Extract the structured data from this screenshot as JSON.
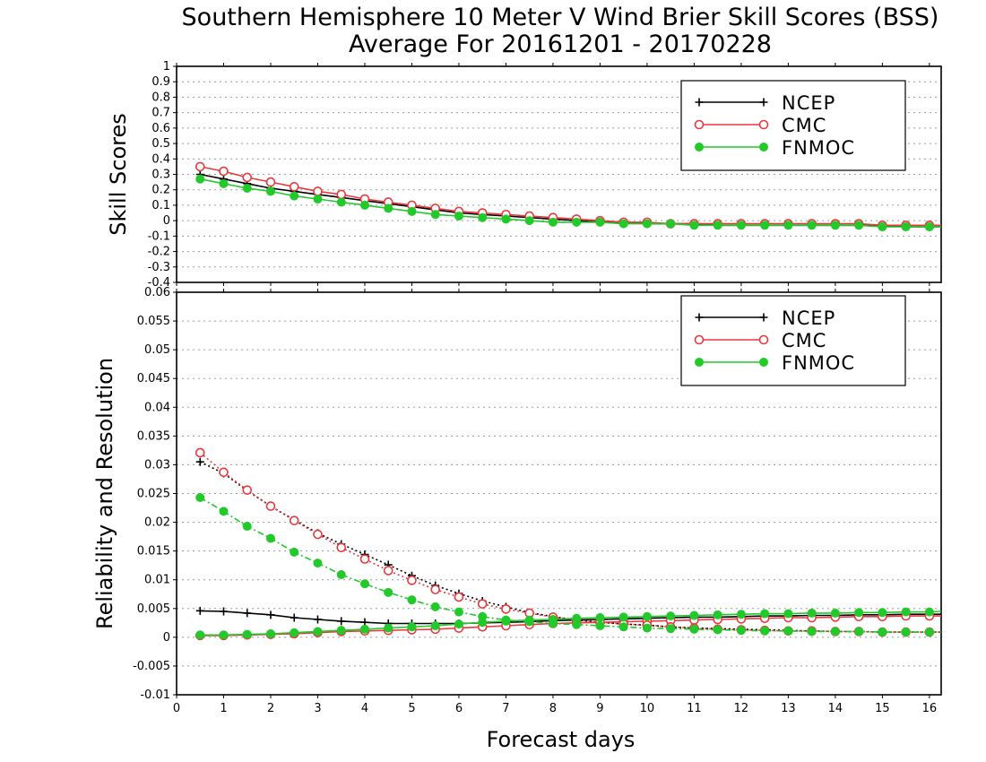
{
  "title_line1": "Southern Hemisphere 10 Meter V Wind Brier Skill Scores (BSS)",
  "title_line2": "Average For 20161201 - 20170228",
  "colors": {
    "NCEP": "#000000",
    "CMC": "#e8393f",
    "FNMOC": "#22c92a",
    "grid": "#9a9a9a"
  },
  "chart_data": [
    {
      "type": "line",
      "ylabel": "Skill Scores",
      "xlabel": "",
      "xlim": [
        0,
        16.25
      ],
      "ylim": [
        -0.4,
        1.0
      ],
      "x_ticks": [
        0,
        1,
        2,
        3,
        4,
        5,
        6,
        7,
        8,
        9,
        10,
        11,
        12,
        13,
        14,
        15,
        16
      ],
      "y_ticks": [
        1,
        0.9,
        0.8,
        0.7,
        0.6,
        0.5,
        0.4,
        0.3,
        0.2,
        0.1,
        0,
        -0.1,
        -0.2,
        -0.3,
        -0.4
      ],
      "y_tick_labels": [
        "1",
        "0.9",
        "0.8",
        "0.7",
        "0.6",
        "0.5",
        "0.4",
        "0.3",
        "0.2",
        "0.1",
        "0",
        "-0.1",
        "-0.2",
        "-0.3",
        "-0.4"
      ],
      "grid": true,
      "legend_position": "top-right",
      "x": [
        0.5,
        1,
        1.5,
        2,
        2.5,
        3,
        3.5,
        4,
        4.5,
        5,
        5.5,
        6,
        6.5,
        7,
        7.5,
        8,
        8.5,
        9,
        9.5,
        10,
        10.5,
        11,
        11.5,
        12,
        12.5,
        13,
        13.5,
        14,
        14.5,
        15,
        15.5,
        16,
        16.25
      ],
      "series": [
        {
          "name": "NCEP",
          "style": "solid",
          "marker": "plus",
          "values": [
            0.3,
            0.27,
            0.24,
            0.21,
            0.19,
            0.17,
            0.15,
            0.13,
            0.11,
            0.09,
            0.07,
            0.05,
            0.04,
            0.03,
            0.02,
            0.01,
            0.0,
            -0.01,
            -0.01,
            -0.02,
            -0.02,
            -0.02,
            -0.03,
            -0.03,
            -0.03,
            -0.03,
            -0.03,
            -0.03,
            -0.03,
            -0.03,
            -0.04,
            -0.04,
            -0.04
          ]
        },
        {
          "name": "CMC",
          "style": "solid",
          "marker": "open-circle",
          "values": [
            0.35,
            0.32,
            0.28,
            0.25,
            0.22,
            0.19,
            0.17,
            0.14,
            0.12,
            0.1,
            0.08,
            0.06,
            0.05,
            0.04,
            0.03,
            0.02,
            0.01,
            0.0,
            -0.01,
            -0.01,
            -0.02,
            -0.02,
            -0.02,
            -0.02,
            -0.02,
            -0.02,
            -0.02,
            -0.02,
            -0.02,
            -0.03,
            -0.03,
            -0.03,
            -0.03
          ]
        },
        {
          "name": "FNMOC",
          "style": "solid",
          "marker": "filled-circle",
          "values": [
            0.27,
            0.24,
            0.21,
            0.19,
            0.16,
            0.14,
            0.12,
            0.1,
            0.08,
            0.06,
            0.04,
            0.03,
            0.02,
            0.01,
            0.0,
            -0.01,
            -0.01,
            -0.01,
            -0.02,
            -0.02,
            -0.02,
            -0.03,
            -0.03,
            -0.03,
            -0.03,
            -0.03,
            -0.03,
            -0.03,
            -0.03,
            -0.04,
            -0.04,
            -0.04,
            -0.04
          ]
        }
      ],
      "legend": [
        {
          "name": "NCEP",
          "marker": "plus"
        },
        {
          "name": "CMC",
          "marker": "open-circle"
        },
        {
          "name": "FNMOC",
          "marker": "filled-circle"
        }
      ]
    },
    {
      "type": "line",
      "ylabel": "Reliability and Resolution",
      "xlabel": "Forecast days",
      "xlim": [
        0,
        16.25
      ],
      "ylim": [
        -0.01,
        0.06
      ],
      "x_ticks": [
        0,
        1,
        2,
        3,
        4,
        5,
        6,
        7,
        8,
        9,
        10,
        11,
        12,
        13,
        14,
        15,
        16
      ],
      "y_ticks": [
        0.06,
        0.055,
        0.05,
        0.045,
        0.04,
        0.035,
        0.03,
        0.025,
        0.02,
        0.015,
        0.01,
        0.005,
        0,
        -0.005,
        -0.01
      ],
      "y_tick_labels": [
        "0.06",
        "0.055",
        "0.05",
        "0.045",
        "0.04",
        "0.035",
        "0.03",
        "0.025",
        "0.02",
        "0.015",
        "0.01",
        "0.005",
        "0",
        "-0.005",
        "-0.01"
      ],
      "grid": true,
      "legend_position": "top-right",
      "x": [
        0.5,
        1,
        1.5,
        2,
        2.5,
        3,
        3.5,
        4,
        4.5,
        5,
        5.5,
        6,
        6.5,
        7,
        7.5,
        8,
        8.5,
        9,
        9.5,
        10,
        10.5,
        11,
        11.5,
        12,
        12.5,
        13,
        13.5,
        14,
        14.5,
        15,
        15.5,
        16,
        16.25
      ],
      "series": [
        {
          "name": "NCEP reliability",
          "group": "NCEP",
          "style": "solid",
          "marker": "plus",
          "values": [
            0.0046,
            0.0045,
            0.0042,
            0.0039,
            0.0034,
            0.0031,
            0.0028,
            0.0026,
            0.0024,
            0.0024,
            0.0024,
            0.0024,
            0.0025,
            0.0026,
            0.0027,
            0.0029,
            0.003,
            0.0031,
            0.0032,
            0.0033,
            0.0034,
            0.0035,
            0.0035,
            0.0036,
            0.0037,
            0.0037,
            0.0038,
            0.0038,
            0.0039,
            0.0039,
            0.004,
            0.004,
            0.004
          ]
        },
        {
          "name": "NCEP resolution",
          "group": "NCEP",
          "style": "dotted",
          "marker": "plus",
          "values": [
            0.0305,
            0.0285,
            0.0255,
            0.0228,
            0.0204,
            0.0181,
            0.0162,
            0.0144,
            0.0126,
            0.0107,
            0.009,
            0.0076,
            0.0063,
            0.0053,
            0.0043,
            0.0036,
            0.003,
            0.0026,
            0.0023,
            0.0021,
            0.0018,
            0.0016,
            0.0015,
            0.0014,
            0.0013,
            0.0012,
            0.0011,
            0.001,
            0.001,
            0.0009,
            0.0009,
            0.0009,
            0.0009
          ]
        },
        {
          "name": "CMC reliability",
          "group": "CMC",
          "style": "solid",
          "marker": "open-circle",
          "values": [
            0.0003,
            0.0003,
            0.0004,
            0.0005,
            0.0006,
            0.0008,
            0.001,
            0.0011,
            0.0012,
            0.0013,
            0.0014,
            0.0016,
            0.0018,
            0.002,
            0.0022,
            0.0024,
            0.0025,
            0.0026,
            0.0027,
            0.0028,
            0.0029,
            0.003,
            0.0031,
            0.0032,
            0.0033,
            0.0034,
            0.0034,
            0.0035,
            0.0036,
            0.0036,
            0.0037,
            0.0037,
            0.0037
          ]
        },
        {
          "name": "CMC resolution",
          "group": "CMC",
          "style": "dotted",
          "marker": "open-circle",
          "values": [
            0.0321,
            0.0287,
            0.0256,
            0.0228,
            0.0203,
            0.0179,
            0.0156,
            0.0136,
            0.0116,
            0.0099,
            0.0083,
            0.007,
            0.0058,
            0.0049,
            0.0042,
            0.0035,
            0.003,
            0.0026,
            0.0023,
            0.0021,
            0.0018,
            0.0016,
            0.0014,
            0.0013,
            0.0012,
            0.0011,
            0.0011,
            0.001,
            0.001,
            0.0009,
            0.0009,
            0.0009,
            0.0009
          ]
        },
        {
          "name": "FNMOC reliability",
          "group": "FNMOC",
          "style": "solid",
          "marker": "filled-circle",
          "values": [
            0.0004,
            0.0004,
            0.0005,
            0.0006,
            0.0008,
            0.001,
            0.0012,
            0.0014,
            0.0016,
            0.0018,
            0.002,
            0.0023,
            0.0026,
            0.0028,
            0.003,
            0.0031,
            0.0033,
            0.0034,
            0.0035,
            0.0036,
            0.0037,
            0.0038,
            0.0039,
            0.004,
            0.0041,
            0.0041,
            0.0042,
            0.0042,
            0.0043,
            0.0043,
            0.0044,
            0.0044,
            0.0045
          ]
        },
        {
          "name": "FNMOC resolution",
          "group": "FNMOC",
          "style": "dashdot",
          "marker": "filled-circle",
          "values": [
            0.0243,
            0.0219,
            0.0193,
            0.0172,
            0.0148,
            0.0129,
            0.0109,
            0.0093,
            0.0078,
            0.0065,
            0.0053,
            0.0044,
            0.0036,
            0.003,
            0.0027,
            0.0024,
            0.0022,
            0.002,
            0.0018,
            0.0016,
            0.0015,
            0.0014,
            0.0013,
            0.0012,
            0.0011,
            0.0011,
            0.001,
            0.001,
            0.001,
            0.0009,
            0.0009,
            0.0009,
            0.0009
          ]
        }
      ],
      "legend": [
        {
          "name": "NCEP",
          "marker": "plus"
        },
        {
          "name": "CMC",
          "marker": "open-circle"
        },
        {
          "name": "FNMOC",
          "marker": "filled-circle"
        }
      ]
    }
  ]
}
